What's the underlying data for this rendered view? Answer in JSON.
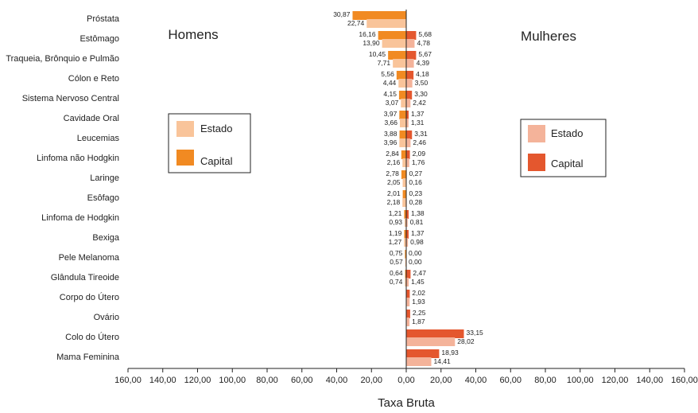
{
  "chart_data": {
    "type": "bar",
    "orientation": "horizontal-butterfly",
    "panel_labels": {
      "left": "Homens",
      "right": "Mulheres"
    },
    "xlabel": "Taxa Bruta",
    "xlim": [
      -160,
      160
    ],
    "xticks": [
      "160,00",
      "140,00",
      "120,00",
      "100,00",
      "80,00",
      "60,00",
      "40,00",
      "20,00",
      "0,00",
      "20,00",
      "40,00",
      "60,00",
      "80,00",
      "100,00",
      "120,00",
      "140,00",
      "160,00"
    ],
    "grid": false,
    "legend_left": {
      "estado": "Estado",
      "capital": "Capital"
    },
    "legend_right": {
      "estado": "Estado",
      "capital": "Capital"
    },
    "colors": {
      "men_capital": "#F18A22",
      "men_estado": "#F9C49A",
      "women_capital": "#E4572E",
      "women_estado": "#F4B39A"
    },
    "categories": [
      "Próstata",
      "Estômago",
      "Traqueia, Brônquio e Pulmão",
      "Cólon e Reto",
      "Sistema Nervoso Central",
      "Cavidade Oral",
      "Leucemias",
      "Linfoma não Hodgkin",
      "Laringe",
      "Esôfago",
      "Linfoma de Hodgkin",
      "Bexiga",
      "Pele Melanoma",
      "Glândula Tireoide",
      "Corpo do Útero",
      "Ovário",
      "Colo do Útero",
      "Mama Feminina"
    ],
    "series": [
      {
        "name": "Homens Capital",
        "values": [
          30.87,
          16.16,
          10.45,
          5.56,
          4.15,
          3.97,
          3.88,
          2.84,
          2.78,
          2.01,
          1.21,
          1.19,
          0.75,
          0.64,
          null,
          null,
          null,
          null
        ],
        "labels": [
          "30,87",
          "16,16",
          "10,45",
          "5,56",
          "4,15",
          "3,97",
          "3,88",
          "2,84",
          "2,78",
          "2,01",
          "1,21",
          "1,19",
          "0,75",
          "0,64",
          "",
          "",
          "",
          ""
        ]
      },
      {
        "name": "Homens Estado",
        "values": [
          22.74,
          13.9,
          7.71,
          4.44,
          3.07,
          3.66,
          3.96,
          2.16,
          2.05,
          2.18,
          0.93,
          1.27,
          0.57,
          0.74,
          null,
          null,
          null,
          null
        ],
        "labels": [
          "22,74",
          "13,90",
          "7,71",
          "4,44",
          "3,07",
          "3,66",
          "3,96",
          "2,16",
          "2,05",
          "2,18",
          "0,93",
          "1,27",
          "0,57",
          "0,74",
          "",
          "",
          "",
          ""
        ]
      },
      {
        "name": "Mulheres Capital",
        "values": [
          null,
          5.68,
          5.67,
          4.18,
          3.3,
          1.37,
          3.31,
          2.09,
          0.27,
          0.23,
          1.38,
          1.37,
          0.0,
          2.47,
          2.02,
          2.25,
          33.15,
          18.93
        ],
        "labels": [
          "",
          "5,68",
          "5,67",
          "4,18",
          "3,30",
          "1,37",
          "3,31",
          "2,09",
          "0,27",
          "0,23",
          "1,38",
          "1,37",
          "0,00",
          "2,47",
          "2,02",
          "2,25",
          "33,15",
          "18,93"
        ]
      },
      {
        "name": "Mulheres Estado",
        "values": [
          null,
          4.78,
          4.39,
          3.5,
          2.42,
          1.31,
          2.46,
          1.76,
          0.16,
          0.28,
          0.81,
          0.98,
          0.0,
          1.45,
          1.93,
          1.87,
          28.02,
          14.41
        ],
        "labels": [
          "",
          "4,78",
          "4,39",
          "3,50",
          "2,42",
          "1,31",
          "2,46",
          "1,76",
          "0,16",
          "0,28",
          "0,81",
          "0,98",
          "0,00",
          "1,45",
          "1,93",
          "1,87",
          "28,02",
          "14,41"
        ]
      }
    ]
  }
}
